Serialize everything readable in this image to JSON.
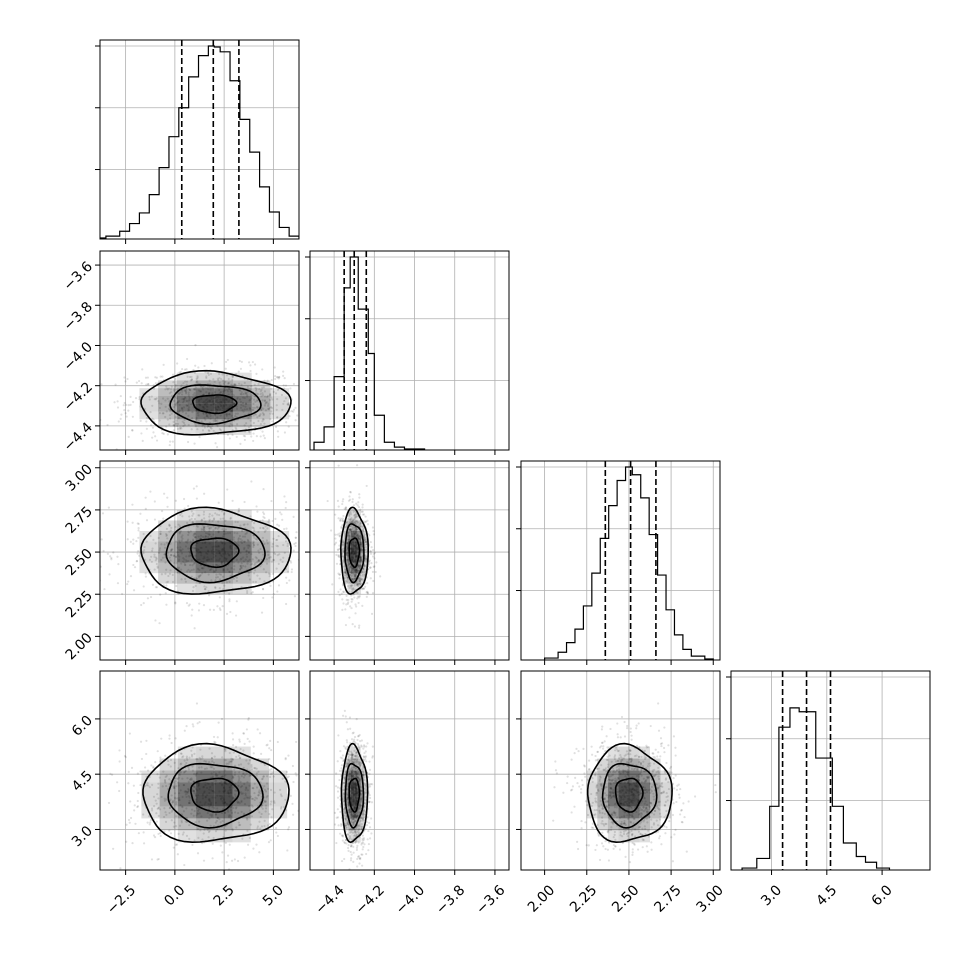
{
  "chart_data": {
    "type": "corner",
    "grid": true,
    "parameters": [
      {
        "ticks": [
          -2.5,
          0.0,
          2.5,
          5.0
        ],
        "tick_labels": [
          "−2.5",
          "0.0",
          "2.5",
          "5.0"
        ],
        "range": [
          -3.8,
          6.3
        ]
      },
      {
        "ticks": [
          -4.4,
          -4.2,
          -4.0,
          -3.8,
          -3.6
        ],
        "tick_labels": [
          "−4.4",
          "−4.2",
          "−4.0",
          "−3.8",
          "−3.6"
        ],
        "range": [
          -4.52,
          -3.53
        ]
      },
      {
        "ticks": [
          2.0,
          2.25,
          2.5,
          2.75,
          3.0
        ],
        "tick_labels": [
          "2.00",
          "2.25",
          "2.50",
          "2.75",
          "3.00"
        ],
        "range": [
          1.86,
          3.04
        ]
      },
      {
        "ticks": [
          3.0,
          4.5,
          6.0
        ],
        "tick_labels": [
          "3.0",
          "4.5",
          "6.0"
        ],
        "range": [
          1.9,
          7.3
        ]
      }
    ],
    "marginals": [
      {
        "quantiles": [
          0.35,
          1.95,
          3.25
        ],
        "bins": [
          [
            -3.8,
            -3.5,
            0.005
          ],
          [
            -3.5,
            -2.8,
            0.015
          ],
          [
            -2.8,
            -2.3,
            0.04
          ],
          [
            -2.3,
            -1.8,
            0.08
          ],
          [
            -1.8,
            -1.3,
            0.135
          ],
          [
            -1.3,
            -0.8,
            0.23
          ],
          [
            -0.8,
            -0.3,
            0.37
          ],
          [
            -0.3,
            0.2,
            0.53
          ],
          [
            0.2,
            0.7,
            0.68
          ],
          [
            0.7,
            1.2,
            0.84
          ],
          [
            1.2,
            1.7,
            0.95
          ],
          [
            1.7,
            2.0,
            1.0
          ],
          [
            2.0,
            2.3,
            0.995
          ],
          [
            2.3,
            2.8,
            0.97
          ],
          [
            2.8,
            3.3,
            0.82
          ],
          [
            3.3,
            3.8,
            0.62
          ],
          [
            3.8,
            4.3,
            0.45
          ],
          [
            4.3,
            4.8,
            0.27
          ],
          [
            4.8,
            5.3,
            0.14
          ],
          [
            5.3,
            5.8,
            0.06
          ],
          [
            5.8,
            6.3,
            0.015
          ]
        ]
      },
      {
        "quantiles": [
          -4.35,
          -4.3,
          -4.24
        ],
        "bins": [
          [
            -4.5,
            -4.45,
            0.04
          ],
          [
            -4.45,
            -4.4,
            0.12
          ],
          [
            -4.4,
            -4.35,
            0.38
          ],
          [
            -4.35,
            -4.32,
            0.84
          ],
          [
            -4.32,
            -4.28,
            1.0
          ],
          [
            -4.28,
            -4.23,
            0.73
          ],
          [
            -4.23,
            -4.2,
            0.5
          ],
          [
            -4.2,
            -4.15,
            0.18
          ],
          [
            -4.15,
            -4.1,
            0.04
          ],
          [
            -4.1,
            -4.05,
            0.015
          ],
          [
            -4.05,
            -3.95,
            0.005
          ]
        ]
      },
      {
        "quantiles": [
          2.36,
          2.51,
          2.66
        ],
        "bins": [
          [
            2.0,
            2.08,
            0.01
          ],
          [
            2.08,
            2.13,
            0.04
          ],
          [
            2.13,
            2.18,
            0.09
          ],
          [
            2.18,
            2.23,
            0.16
          ],
          [
            2.23,
            2.28,
            0.28
          ],
          [
            2.28,
            2.33,
            0.45
          ],
          [
            2.33,
            2.38,
            0.63
          ],
          [
            2.38,
            2.43,
            0.8
          ],
          [
            2.43,
            2.48,
            0.93
          ],
          [
            2.48,
            2.52,
            1.0
          ],
          [
            2.52,
            2.57,
            0.96
          ],
          [
            2.57,
            2.62,
            0.84
          ],
          [
            2.62,
            2.67,
            0.65
          ],
          [
            2.67,
            2.72,
            0.44
          ],
          [
            2.72,
            2.77,
            0.26
          ],
          [
            2.77,
            2.82,
            0.13
          ],
          [
            2.82,
            2.87,
            0.055
          ],
          [
            2.87,
            2.95,
            0.02
          ],
          [
            2.95,
            3.0,
            0.005
          ]
        ]
      },
      {
        "quantiles": [
          3.3,
          3.95,
          4.6
        ],
        "bins": [
          [
            2.2,
            2.6,
            0.01
          ],
          [
            2.6,
            2.95,
            0.06
          ],
          [
            2.95,
            3.2,
            0.33
          ],
          [
            3.2,
            3.5,
            0.74
          ],
          [
            3.5,
            3.75,
            0.84
          ],
          [
            3.75,
            4.2,
            0.82
          ],
          [
            4.2,
            4.65,
            0.58
          ],
          [
            4.65,
            4.95,
            0.33
          ],
          [
            4.95,
            5.3,
            0.14
          ],
          [
            5.3,
            5.55,
            0.07
          ],
          [
            5.55,
            5.85,
            0.04
          ],
          [
            5.85,
            6.2,
            0.01
          ]
        ]
      }
    ],
    "pairs": [
      {
        "i": 1,
        "j": 0,
        "cx": 2.0,
        "cy": -4.29,
        "levels": [
          [
            1.1,
            0.045
          ],
          [
            2.3,
            0.095
          ],
          [
            3.8,
            0.155
          ]
        ]
      },
      {
        "i": 2,
        "j": 0,
        "cx": 2.0,
        "cy": 2.5,
        "levels": [
          [
            1.2,
            0.085
          ],
          [
            2.5,
            0.17
          ],
          [
            3.8,
            0.25
          ]
        ]
      },
      {
        "i": 2,
        "j": 1,
        "cx": -4.3,
        "cy": 2.5,
        "levels": [
          [
            0.025,
            0.085
          ],
          [
            0.047,
            0.17
          ],
          [
            0.068,
            0.25
          ]
        ]
      },
      {
        "i": 3,
        "j": 0,
        "cx": 2.0,
        "cy": 3.95,
        "levels": [
          [
            1.2,
            0.45
          ],
          [
            2.4,
            0.85
          ],
          [
            3.7,
            1.3
          ]
        ]
      },
      {
        "i": 3,
        "j": 1,
        "cx": -4.3,
        "cy": 3.95,
        "levels": [
          [
            0.025,
            0.45
          ],
          [
            0.045,
            0.85
          ],
          [
            0.065,
            1.3
          ]
        ]
      },
      {
        "i": 3,
        "j": 2,
        "cx": 2.5,
        "cy": 3.95,
        "levels": [
          [
            0.08,
            0.45
          ],
          [
            0.16,
            0.85
          ],
          [
            0.25,
            1.3
          ]
        ]
      }
    ]
  }
}
